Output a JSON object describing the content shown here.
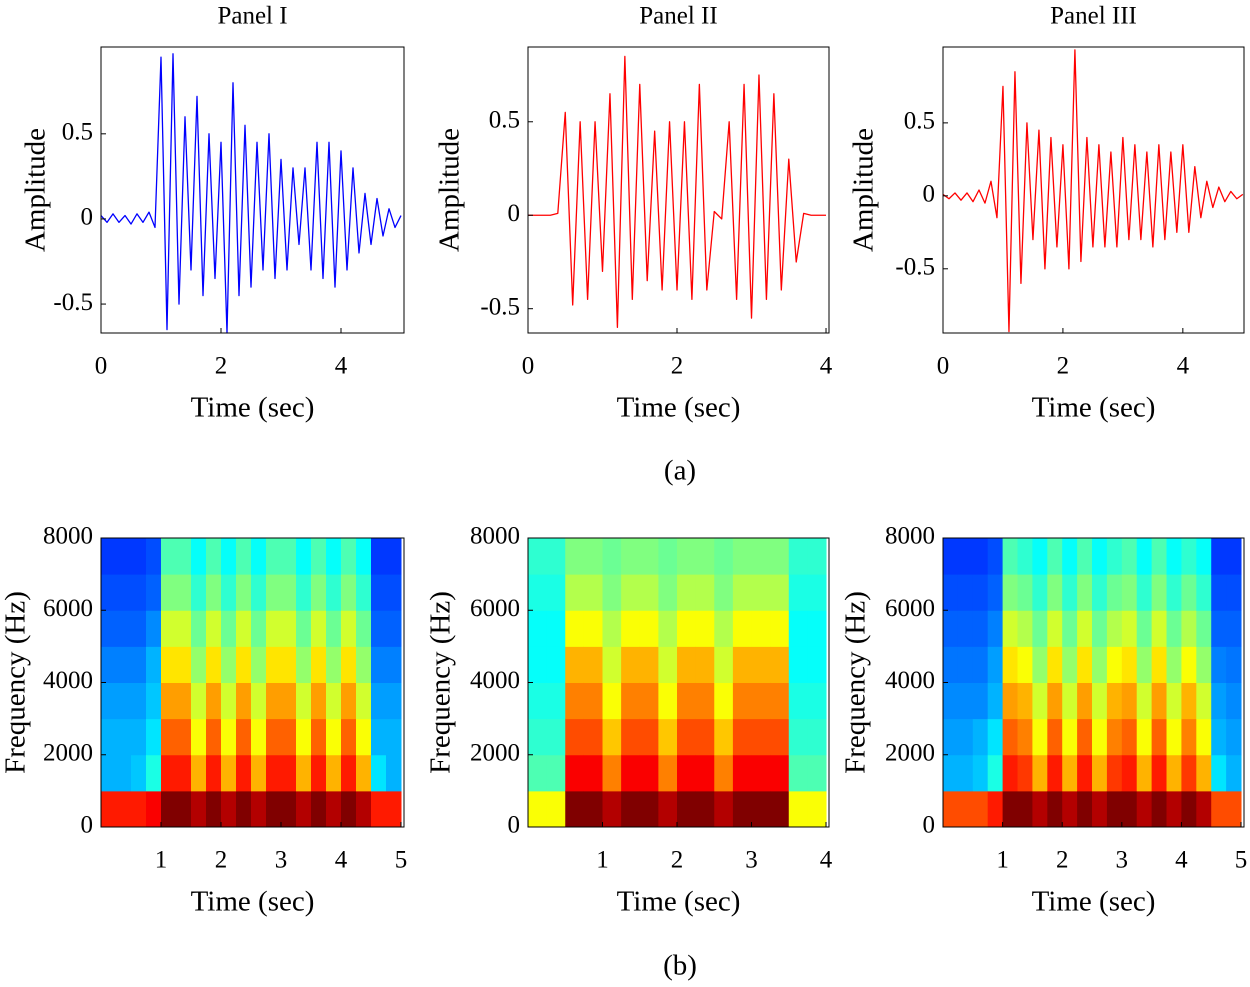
{
  "chart_data": [
    {
      "type": "line",
      "title": "Panel I",
      "x_label": "Time (sec)",
      "y_label": "Amplitude",
      "color": "#0000ff",
      "xlim": [
        0,
        5.05
      ],
      "ylim": [
        -0.67,
        1.01
      ],
      "xticks": [
        0,
        2,
        4
      ],
      "yticks": [
        -0.5,
        0,
        0.5
      ],
      "x": [
        0,
        0.1,
        0.2,
        0.3,
        0.4,
        0.5,
        0.6,
        0.7,
        0.8,
        0.9,
        1.0,
        1.1,
        1.2,
        1.3,
        1.4,
        1.5,
        1.6,
        1.7,
        1.8,
        1.9,
        2.0,
        2.1,
        2.2,
        2.3,
        2.4,
        2.5,
        2.6,
        2.7,
        2.8,
        2.9,
        3.0,
        3.1,
        3.2,
        3.3,
        3.4,
        3.5,
        3.6,
        3.7,
        3.8,
        3.9,
        4.0,
        4.1,
        4.2,
        4.3,
        4.4,
        4.5,
        4.6,
        4.7,
        4.8,
        4.9,
        5.0
      ],
      "values": [
        0.02,
        -0.02,
        0.03,
        -0.02,
        0.02,
        -0.03,
        0.03,
        -0.02,
        0.04,
        -0.05,
        0.95,
        -0.65,
        0.97,
        -0.5,
        0.6,
        -0.3,
        0.72,
        -0.45,
        0.5,
        -0.35,
        0.45,
        -0.67,
        0.8,
        -0.45,
        0.55,
        -0.4,
        0.45,
        -0.3,
        0.5,
        -0.35,
        0.35,
        -0.3,
        0.3,
        -0.15,
        0.3,
        -0.3,
        0.45,
        -0.35,
        0.45,
        -0.4,
        0.4,
        -0.3,
        0.3,
        -0.2,
        0.15,
        -0.15,
        0.12,
        -0.1,
        0.06,
        -0.05,
        0.02
      ]
    },
    {
      "type": "line",
      "title": "Panel II",
      "x_label": "Time (sec)",
      "y_label": "Amplitude",
      "color": "#ff0000",
      "xlim": [
        0,
        4.04
      ],
      "ylim": [
        -0.63,
        0.9
      ],
      "xticks": [
        0,
        2,
        4
      ],
      "yticks": [
        -0.5,
        0,
        0.5
      ],
      "x": [
        0,
        0.1,
        0.2,
        0.3,
        0.4,
        0.5,
        0.6,
        0.7,
        0.8,
        0.9,
        1.0,
        1.1,
        1.2,
        1.3,
        1.4,
        1.5,
        1.6,
        1.7,
        1.8,
        1.9,
        2.0,
        2.1,
        2.2,
        2.3,
        2.4,
        2.5,
        2.6,
        2.7,
        2.8,
        2.9,
        3.0,
        3.1,
        3.2,
        3.3,
        3.4,
        3.5,
        3.6,
        3.7,
        3.8,
        3.9,
        4.0
      ],
      "values": [
        0,
        0,
        0,
        0,
        0.01,
        0.55,
        -0.48,
        0.5,
        -0.45,
        0.5,
        -0.3,
        0.65,
        -0.6,
        0.85,
        -0.45,
        0.7,
        -0.35,
        0.45,
        -0.4,
        0.5,
        -0.4,
        0.5,
        -0.45,
        0.7,
        -0.4,
        0.02,
        -0.02,
        0.5,
        -0.45,
        0.7,
        -0.55,
        0.75,
        -0.45,
        0.65,
        -0.4,
        0.3,
        -0.25,
        0.01,
        0,
        0,
        0
      ]
    },
    {
      "type": "line",
      "title": "Panel III",
      "x_label": "Time (sec)",
      "y_label": "Amplitude",
      "color": "#ff0000",
      "xlim": [
        0,
        5.02
      ],
      "ylim": [
        -0.94,
        1.02
      ],
      "xticks": [
        0,
        2,
        4
      ],
      "yticks": [
        -0.5,
        0,
        0.5
      ],
      "x": [
        0,
        0.1,
        0.2,
        0.3,
        0.4,
        0.5,
        0.6,
        0.7,
        0.8,
        0.9,
        1.0,
        1.1,
        1.2,
        1.3,
        1.4,
        1.5,
        1.6,
        1.7,
        1.8,
        1.9,
        2.0,
        2.1,
        2.2,
        2.3,
        2.4,
        2.5,
        2.6,
        2.7,
        2.8,
        2.9,
        3.0,
        3.1,
        3.2,
        3.3,
        3.4,
        3.5,
        3.6,
        3.7,
        3.8,
        3.9,
        4.0,
        4.1,
        4.2,
        4.3,
        4.4,
        4.5,
        4.6,
        4.7,
        4.8,
        4.9,
        5.0
      ],
      "values": [
        0.01,
        -0.02,
        0.02,
        -0.03,
        0.02,
        -0.04,
        0.04,
        -0.05,
        0.1,
        -0.15,
        0.75,
        -0.93,
        0.85,
        -0.6,
        0.5,
        -0.3,
        0.45,
        -0.5,
        0.4,
        -0.35,
        0.35,
        -0.5,
        1.0,
        -0.45,
        0.4,
        -0.35,
        0.35,
        -0.35,
        0.3,
        -0.35,
        0.4,
        -0.3,
        0.35,
        -0.3,
        0.3,
        -0.35,
        0.35,
        -0.3,
        0.3,
        -0.25,
        0.35,
        -0.25,
        0.2,
        -0.15,
        0.1,
        -0.08,
        0.06,
        -0.04,
        0.03,
        -0.02,
        0.01
      ]
    },
    {
      "type": "heatmap",
      "x_label": "Time (sec)",
      "y_label": "Frequency (Hz)",
      "colormap": "jet",
      "xlim": [
        0,
        5.05
      ],
      "ylim": [
        0,
        8000
      ],
      "xticks": [
        1,
        2,
        3,
        4,
        5
      ],
      "yticks": [
        0,
        2000,
        4000,
        6000,
        8000
      ],
      "x": [
        0.125,
        0.375,
        0.625,
        0.875,
        1.125,
        1.375,
        1.625,
        1.875,
        2.125,
        2.375,
        2.625,
        2.875,
        3.125,
        3.375,
        3.625,
        3.875,
        4.125,
        4.375,
        4.625,
        4.875
      ],
      "y": [
        500,
        1500,
        2500,
        3500,
        4500,
        5500,
        6500,
        7500
      ],
      "z": [
        [
          0.85,
          0.3,
          0.3,
          0.28,
          0.25,
          0.22,
          0.2,
          0.18
        ],
        [
          0.85,
          0.3,
          0.3,
          0.28,
          0.25,
          0.22,
          0.2,
          0.18
        ],
        [
          0.85,
          0.32,
          0.3,
          0.28,
          0.25,
          0.22,
          0.2,
          0.18
        ],
        [
          0.88,
          0.4,
          0.35,
          0.32,
          0.3,
          0.26,
          0.22,
          0.2
        ],
        [
          1,
          0.85,
          0.78,
          0.72,
          0.65,
          0.58,
          0.5,
          0.45
        ],
        [
          1,
          0.85,
          0.78,
          0.72,
          0.65,
          0.58,
          0.5,
          0.45
        ],
        [
          0.95,
          0.7,
          0.62,
          0.58,
          0.52,
          0.48,
          0.42,
          0.38
        ],
        [
          1,
          0.85,
          0.78,
          0.72,
          0.65,
          0.58,
          0.5,
          0.45
        ],
        [
          0.95,
          0.7,
          0.62,
          0.58,
          0.52,
          0.48,
          0.42,
          0.38
        ],
        [
          1,
          0.85,
          0.78,
          0.72,
          0.65,
          0.58,
          0.5,
          0.45
        ],
        [
          0.95,
          0.7,
          0.62,
          0.58,
          0.52,
          0.48,
          0.42,
          0.38
        ],
        [
          1,
          0.85,
          0.78,
          0.72,
          0.65,
          0.58,
          0.5,
          0.45
        ],
        [
          1,
          0.85,
          0.78,
          0.72,
          0.65,
          0.58,
          0.5,
          0.45
        ],
        [
          0.95,
          0.7,
          0.62,
          0.58,
          0.52,
          0.48,
          0.42,
          0.38
        ],
        [
          1,
          0.85,
          0.78,
          0.72,
          0.65,
          0.58,
          0.5,
          0.45
        ],
        [
          0.95,
          0.7,
          0.62,
          0.58,
          0.52,
          0.48,
          0.42,
          0.38
        ],
        [
          1,
          0.85,
          0.78,
          0.72,
          0.65,
          0.58,
          0.5,
          0.45
        ],
        [
          0.95,
          0.7,
          0.62,
          0.58,
          0.52,
          0.48,
          0.42,
          0.38
        ],
        [
          0.85,
          0.35,
          0.3,
          0.28,
          0.25,
          0.22,
          0.2,
          0.18
        ],
        [
          0.85,
          0.3,
          0.3,
          0.28,
          0.25,
          0.22,
          0.2,
          0.18
        ]
      ]
    },
    {
      "type": "heatmap",
      "x_label": "Time (sec)",
      "y_label": "Frequency (Hz)",
      "colormap": "jet",
      "xlim": [
        0,
        4.04
      ],
      "ylim": [
        0,
        8000
      ],
      "xticks": [
        1,
        2,
        3,
        4
      ],
      "yticks": [
        0,
        2000,
        4000,
        6000,
        8000
      ],
      "x": [
        0.125,
        0.375,
        0.625,
        0.875,
        1.125,
        1.375,
        1.625,
        1.875,
        2.125,
        2.375,
        2.625,
        2.875,
        3.125,
        3.375,
        3.625,
        3.875
      ],
      "y": [
        500,
        1500,
        2500,
        3500,
        4500,
        5500,
        6500,
        7500
      ],
      "z": [
        [
          0.62,
          0.45,
          0.42,
          0.4,
          0.38,
          0.38,
          0.4,
          0.42
        ],
        [
          0.62,
          0.45,
          0.42,
          0.4,
          0.38,
          0.38,
          0.4,
          0.42
        ],
        [
          1,
          0.88,
          0.8,
          0.75,
          0.7,
          0.62,
          0.55,
          0.5
        ],
        [
          1,
          0.88,
          0.8,
          0.75,
          0.7,
          0.62,
          0.55,
          0.5
        ],
        [
          0.95,
          0.75,
          0.68,
          0.62,
          0.58,
          0.55,
          0.5,
          0.48
        ],
        [
          1,
          0.88,
          0.8,
          0.75,
          0.7,
          0.62,
          0.55,
          0.5
        ],
        [
          1,
          0.88,
          0.8,
          0.75,
          0.7,
          0.62,
          0.55,
          0.5
        ],
        [
          0.95,
          0.75,
          0.68,
          0.62,
          0.58,
          0.55,
          0.5,
          0.48
        ],
        [
          1,
          0.88,
          0.8,
          0.75,
          0.7,
          0.62,
          0.55,
          0.5
        ],
        [
          1,
          0.88,
          0.8,
          0.75,
          0.7,
          0.62,
          0.55,
          0.5
        ],
        [
          0.95,
          0.75,
          0.68,
          0.62,
          0.58,
          0.55,
          0.5,
          0.48
        ],
        [
          1,
          0.88,
          0.8,
          0.75,
          0.7,
          0.62,
          0.55,
          0.5
        ],
        [
          1,
          0.88,
          0.8,
          0.75,
          0.7,
          0.62,
          0.55,
          0.5
        ],
        [
          1,
          0.88,
          0.8,
          0.75,
          0.7,
          0.62,
          0.55,
          0.5
        ],
        [
          0.62,
          0.45,
          0.42,
          0.4,
          0.38,
          0.38,
          0.4,
          0.42
        ],
        [
          0.62,
          0.45,
          0.42,
          0.4,
          0.38,
          0.38,
          0.4,
          0.42
        ]
      ]
    },
    {
      "type": "heatmap",
      "x_label": "Time (sec)",
      "y_label": "Frequency (Hz)",
      "colormap": "jet",
      "xlim": [
        0,
        5.05
      ],
      "ylim": [
        0,
        8000
      ],
      "xticks": [
        1,
        2,
        3,
        4,
        5
      ],
      "yticks": [
        0,
        2000,
        4000,
        6000,
        8000
      ],
      "x": [
        0.125,
        0.375,
        0.625,
        0.875,
        1.125,
        1.375,
        1.625,
        1.875,
        2.125,
        2.375,
        2.625,
        2.875,
        3.125,
        3.375,
        3.625,
        3.875,
        4.125,
        4.375,
        4.625,
        4.875
      ],
      "y": [
        500,
        1500,
        2500,
        3500,
        4500,
        5500,
        6500,
        7500
      ],
      "z": [
        [
          0.8,
          0.3,
          0.28,
          0.26,
          0.24,
          0.22,
          0.2,
          0.18
        ],
        [
          0.8,
          0.3,
          0.28,
          0.26,
          0.24,
          0.22,
          0.2,
          0.18
        ],
        [
          0.8,
          0.32,
          0.3,
          0.26,
          0.24,
          0.22,
          0.2,
          0.18
        ],
        [
          0.85,
          0.4,
          0.35,
          0.3,
          0.28,
          0.25,
          0.22,
          0.2
        ],
        [
          1,
          0.85,
          0.78,
          0.72,
          0.65,
          0.58,
          0.5,
          0.45
        ],
        [
          1,
          0.82,
          0.75,
          0.7,
          0.62,
          0.55,
          0.48,
          0.42
        ],
        [
          0.95,
          0.7,
          0.62,
          0.58,
          0.52,
          0.48,
          0.42,
          0.38
        ],
        [
          1,
          0.85,
          0.78,
          0.72,
          0.65,
          0.58,
          0.5,
          0.45
        ],
        [
          0.95,
          0.7,
          0.62,
          0.58,
          0.52,
          0.48,
          0.42,
          0.38
        ],
        [
          1,
          0.85,
          0.78,
          0.72,
          0.65,
          0.58,
          0.5,
          0.45
        ],
        [
          0.95,
          0.7,
          0.62,
          0.58,
          0.52,
          0.48,
          0.42,
          0.38
        ],
        [
          1,
          0.82,
          0.75,
          0.7,
          0.62,
          0.55,
          0.48,
          0.42
        ],
        [
          1,
          0.85,
          0.78,
          0.72,
          0.65,
          0.58,
          0.5,
          0.45
        ],
        [
          0.95,
          0.7,
          0.62,
          0.58,
          0.52,
          0.48,
          0.42,
          0.38
        ],
        [
          1,
          0.85,
          0.78,
          0.72,
          0.65,
          0.58,
          0.5,
          0.45
        ],
        [
          0.95,
          0.7,
          0.62,
          0.58,
          0.52,
          0.48,
          0.42,
          0.38
        ],
        [
          1,
          0.82,
          0.75,
          0.7,
          0.62,
          0.55,
          0.48,
          0.42
        ],
        [
          0.95,
          0.7,
          0.62,
          0.58,
          0.52,
          0.48,
          0.42,
          0.38
        ],
        [
          0.8,
          0.35,
          0.3,
          0.28,
          0.25,
          0.22,
          0.2,
          0.18
        ],
        [
          0.8,
          0.3,
          0.28,
          0.26,
          0.24,
          0.22,
          0.2,
          0.18
        ]
      ]
    }
  ],
  "figure_labels": [
    "(a)",
    "(b)"
  ]
}
